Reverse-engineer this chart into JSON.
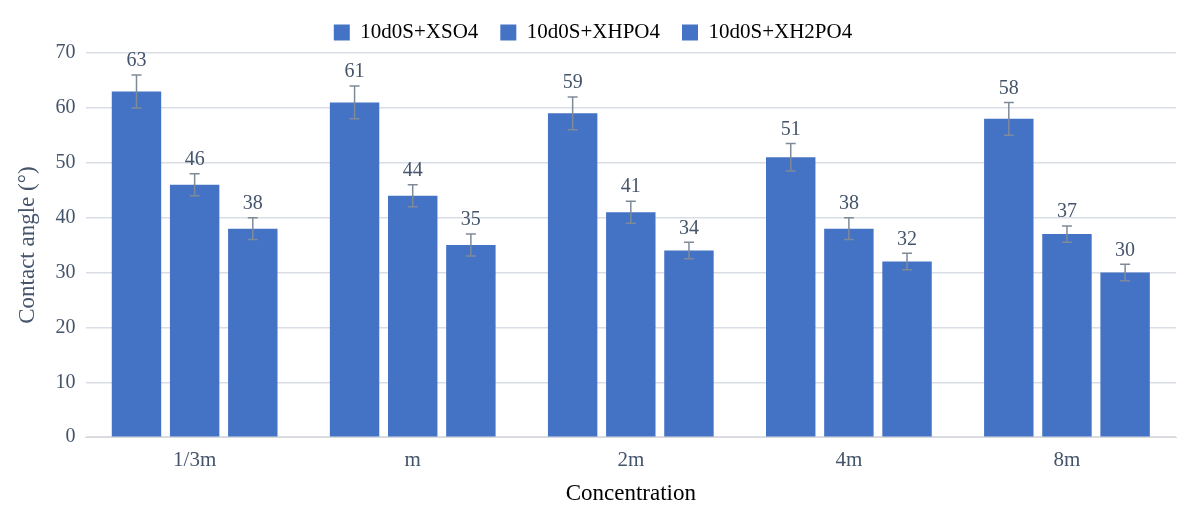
{
  "chart_data": {
    "type": "bar",
    "xlabel": "Concentration",
    "ylabel": "Contact angle (°)",
    "categories": [
      "1/3m",
      "m",
      "2m",
      "4m",
      "8m"
    ],
    "series": [
      {
        "name": "10d0S+XSO4",
        "color": "#4472c4",
        "values": [
          63,
          61,
          59,
          51,
          58
        ],
        "errors": [
          3,
          3,
          3,
          2.5,
          3
        ]
      },
      {
        "name": "10d0S+XHPO4",
        "color": "#4472c4",
        "values": [
          46,
          44,
          41,
          38,
          37
        ],
        "errors": [
          2,
          2,
          2,
          2,
          1.5
        ]
      },
      {
        "name": "10d0S+XH2PO4",
        "color": "#4472c4",
        "values": [
          38,
          35,
          34,
          32,
          30
        ],
        "errors": [
          2,
          2,
          1.5,
          1.5,
          1.5
        ]
      }
    ],
    "ylim": [
      0,
      70
    ],
    "yticks": [
      0,
      10,
      20,
      30,
      40,
      50,
      60,
      70
    ],
    "grid": "y",
    "legend": "top",
    "data_labels": true
  }
}
